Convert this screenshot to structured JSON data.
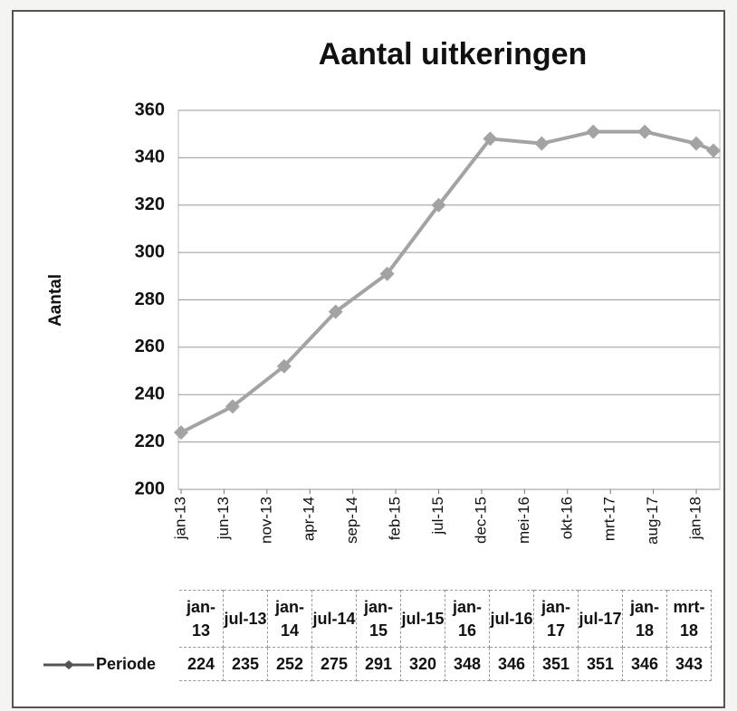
{
  "chart_data": {
    "type": "line",
    "title": "Aantal uitkeringen",
    "ylabel": "Aantal",
    "x": [
      "2013-01",
      "2013-07",
      "2014-01",
      "2014-07",
      "2015-01",
      "2015-07",
      "2016-01",
      "2016-07",
      "2017-01",
      "2017-07",
      "2018-01",
      "2018-03"
    ],
    "table_periods": [
      "jan-13",
      "jul-13",
      "jan-14",
      "jul-14",
      "jan-15",
      "jul-15",
      "jan-16",
      "jul-16",
      "jan-17",
      "jul-17",
      "jan-18",
      "mrt-18"
    ],
    "series": [
      {
        "name": "Periode",
        "color": "#a3a3a3",
        "values": [
          224,
          235,
          252,
          275,
          291,
          320,
          348,
          346,
          351,
          351,
          346,
          343
        ]
      }
    ],
    "xlim": [
      "2013-01",
      "2018-03"
    ],
    "xticks": [
      {
        "value": "2013-01",
        "label": "jan-13"
      },
      {
        "value": "2013-06",
        "label": "jun-13"
      },
      {
        "value": "2013-11",
        "label": "nov-13"
      },
      {
        "value": "2014-04",
        "label": "apr-14"
      },
      {
        "value": "2014-09",
        "label": "sep-14"
      },
      {
        "value": "2015-02",
        "label": "feb-15"
      },
      {
        "value": "2015-07",
        "label": "jul-15"
      },
      {
        "value": "2015-12",
        "label": "dec-15"
      },
      {
        "value": "2016-05",
        "label": "mei-16"
      },
      {
        "value": "2016-10",
        "label": "okt-16"
      },
      {
        "value": "2017-03",
        "label": "mrt-17"
      },
      {
        "value": "2017-08",
        "label": "aug-17"
      },
      {
        "value": "2018-01",
        "label": "jan-18"
      }
    ],
    "ylim": [
      200,
      360
    ],
    "yticks": [
      200,
      220,
      240,
      260,
      280,
      300,
      320,
      340,
      360
    ],
    "grid": true
  }
}
